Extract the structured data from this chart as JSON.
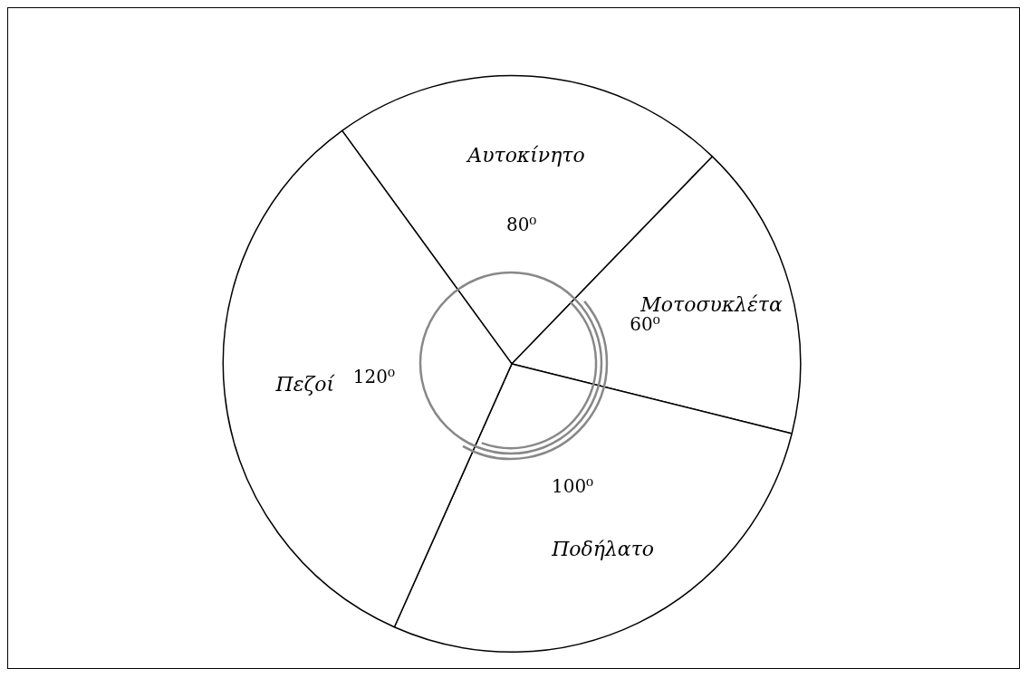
{
  "chart_data": {
    "type": "pie",
    "categories": [
      "Αυτοκίνητο",
      "Μοτοσυκλέτα",
      "Ποδήλατο",
      "Πεζοί"
    ],
    "values": [
      80,
      60,
      100,
      120
    ],
    "colors": [
      "#ffffff",
      "#ffffff",
      "#ffffff",
      "#ffffff"
    ],
    "value_labels": [
      "80⁰",
      "60⁰",
      "100⁰",
      "120⁰"
    ],
    "legend": false
  }
}
